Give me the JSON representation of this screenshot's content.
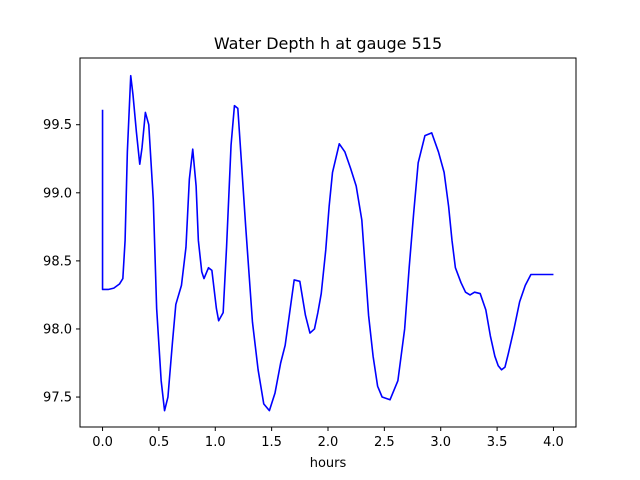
{
  "chart_data": {
    "type": "line",
    "title": "Water Depth h at gauge 515",
    "xlabel": "hours",
    "ylabel": "",
    "xlim": [
      -0.2,
      4.2
    ],
    "ylim": [
      97.28,
      99.99
    ],
    "xticks": [
      0.0,
      0.5,
      1.0,
      1.5,
      2.0,
      2.5,
      3.0,
      3.5,
      4.0
    ],
    "xtick_labels": [
      "0.0",
      "0.5",
      "1.0",
      "1.5",
      "2.0",
      "2.5",
      "3.0",
      "3.5",
      "4.0"
    ],
    "yticks": [
      97.5,
      98.0,
      98.5,
      99.0,
      99.5
    ],
    "ytick_labels": [
      "97.5",
      "98.0",
      "98.5",
      "99.0",
      "99.5"
    ],
    "grid": false,
    "legend": "none",
    "series": [
      {
        "color": "#0000ff",
        "x": [
          0.0,
          0.0,
          0.0,
          0.05,
          0.1,
          0.15,
          0.18,
          0.2,
          0.22,
          0.25,
          0.27,
          0.3,
          0.33,
          0.35,
          0.38,
          0.41,
          0.45,
          0.48,
          0.52,
          0.55,
          0.58,
          0.62,
          0.65,
          0.7,
          0.74,
          0.77,
          0.8,
          0.83,
          0.85,
          0.88,
          0.9,
          0.94,
          0.97,
          1.01,
          1.03,
          1.07,
          1.1,
          1.14,
          1.17,
          1.2,
          1.23,
          1.27,
          1.3,
          1.33,
          1.38,
          1.43,
          1.48,
          1.53,
          1.58,
          1.62,
          1.66,
          1.7,
          1.75,
          1.8,
          1.84,
          1.88,
          1.91,
          1.94,
          1.98,
          2.01,
          2.04,
          2.1,
          2.15,
          2.2,
          2.25,
          2.3,
          2.33,
          2.36,
          2.4,
          2.44,
          2.48,
          2.55,
          2.62,
          2.68,
          2.72,
          2.76,
          2.8,
          2.86,
          2.92,
          2.98,
          3.03,
          3.07,
          3.1,
          3.13,
          3.18,
          3.22,
          3.26,
          3.3,
          3.35,
          3.4,
          3.44,
          3.48,
          3.51,
          3.54,
          3.57,
          3.6,
          3.65,
          3.7,
          3.75,
          3.8,
          3.84,
          3.88,
          3.93,
          3.97,
          4.0
        ],
        "y": [
          99.61,
          98.29,
          98.29,
          98.29,
          98.3,
          98.33,
          98.37,
          98.65,
          99.3,
          99.86,
          99.72,
          99.45,
          99.21,
          99.33,
          99.59,
          99.5,
          98.95,
          98.15,
          97.62,
          97.4,
          97.5,
          97.9,
          98.18,
          98.32,
          98.6,
          99.1,
          99.32,
          99.05,
          98.65,
          98.42,
          98.37,
          98.45,
          98.43,
          98.15,
          98.06,
          98.12,
          98.6,
          99.35,
          99.64,
          99.62,
          99.25,
          98.75,
          98.4,
          98.05,
          97.7,
          97.45,
          97.4,
          97.53,
          97.75,
          97.88,
          98.12,
          98.36,
          98.35,
          98.1,
          97.97,
          98.0,
          98.12,
          98.26,
          98.58,
          98.9,
          99.15,
          99.36,
          99.3,
          99.18,
          99.05,
          98.8,
          98.45,
          98.1,
          97.8,
          97.58,
          97.5,
          97.48,
          97.62,
          98.0,
          98.45,
          98.85,
          99.22,
          99.42,
          99.44,
          99.3,
          99.15,
          98.9,
          98.65,
          98.45,
          98.34,
          98.27,
          98.25,
          98.27,
          98.26,
          98.14,
          97.95,
          97.8,
          97.73,
          97.7,
          97.72,
          97.82,
          98.0,
          98.2,
          98.32,
          98.4,
          98.4,
          98.4,
          98.4,
          98.4,
          98.4
        ]
      }
    ]
  }
}
